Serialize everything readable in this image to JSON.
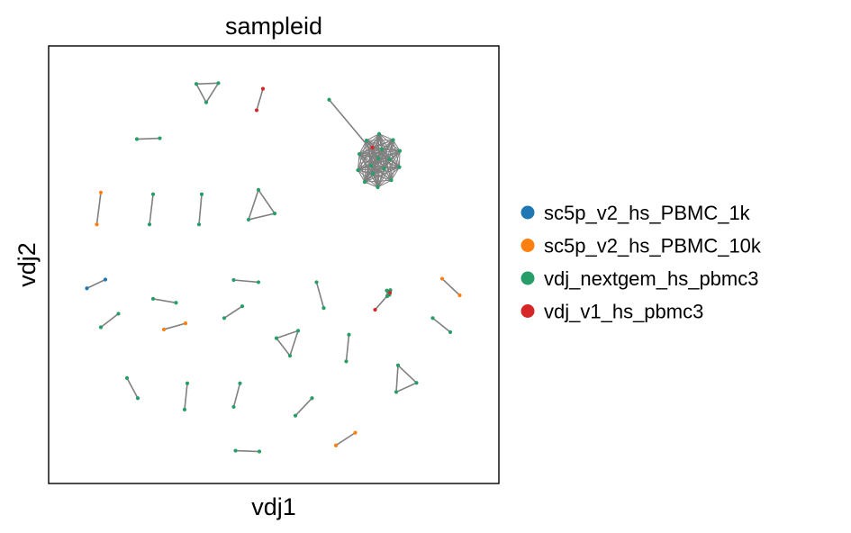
{
  "chart_data": {
    "type": "scatter",
    "title": "sampleid",
    "xlabel": "vdj1",
    "ylabel": "vdj2",
    "xlim": [
      0,
      100
    ],
    "ylim": [
      0,
      100
    ],
    "grid": false,
    "ticks": false,
    "legend_placement": "right",
    "edge_color": "#808080",
    "series": [
      {
        "name": "sc5p_v2_hs_PBMC_1k",
        "color": "#1f77b4"
      },
      {
        "name": "sc5p_v2_hs_PBMC_10k",
        "color": "#ff7f0e"
      },
      {
        "name": "vdj_nextgem_hs_pbmc3",
        "color": "#279e68"
      },
      {
        "name": "vdj_v1_hs_pbmc3",
        "color": "#d62728"
      }
    ],
    "nodes": [
      [
        32.8,
        91.3,
        2
      ],
      [
        37.7,
        91.5,
        2
      ],
      [
        35.0,
        87.1,
        2
      ],
      [
        47.6,
        90.2,
        3
      ],
      [
        46.2,
        85.3,
        3
      ],
      [
        19.6,
        78.7,
        2
      ],
      [
        24.7,
        78.9,
        2
      ],
      [
        62.3,
        87.7,
        2
      ],
      [
        11.6,
        66.5,
        1
      ],
      [
        10.7,
        59.2,
        1
      ],
      [
        23.2,
        66.1,
        2
      ],
      [
        22.4,
        59.2,
        2
      ],
      [
        34.0,
        66.1,
        2
      ],
      [
        33.4,
        59.2,
        2
      ],
      [
        46.6,
        67.1,
        2
      ],
      [
        44.4,
        60.3,
        2
      ],
      [
        50.2,
        61.7,
        2
      ],
      [
        8.5,
        44.6,
        0
      ],
      [
        12.6,
        46.6,
        0
      ],
      [
        23.2,
        42.2,
        2
      ],
      [
        28.3,
        41.3,
        2
      ],
      [
        41.1,
        46.5,
        2
      ],
      [
        46.6,
        46.0,
        2
      ],
      [
        59.5,
        46.0,
        2
      ],
      [
        61.1,
        40.1,
        2
      ],
      [
        75.6,
        43.5,
        3
      ],
      [
        75.3,
        43.0,
        3
      ],
      [
        75.8,
        44.0,
        3
      ],
      [
        75.6,
        43.5,
        2
      ],
      [
        75.2,
        42.8,
        2
      ],
      [
        75.9,
        44.2,
        2
      ],
      [
        75.4,
        43.8,
        2
      ],
      [
        75.7,
        43.1,
        2
      ],
      [
        75.1,
        44.1,
        2
      ],
      [
        72.5,
        39.7,
        3
      ],
      [
        75.8,
        43.6,
        3
      ],
      [
        87.4,
        46.8,
        1
      ],
      [
        91.3,
        43.0,
        1
      ],
      [
        11.6,
        35.7,
        2
      ],
      [
        15.5,
        38.8,
        2
      ],
      [
        25.6,
        35.2,
        1
      ],
      [
        30.4,
        36.6,
        1
      ],
      [
        39.0,
        37.8,
        2
      ],
      [
        43.0,
        40.5,
        2
      ],
      [
        50.6,
        33.2,
        2
      ],
      [
        55.4,
        34.9,
        2
      ],
      [
        53.6,
        29.2,
        2
      ],
      [
        66.7,
        34.0,
        2
      ],
      [
        66.1,
        27.9,
        2
      ],
      [
        85.3,
        37.8,
        2
      ],
      [
        89.2,
        34.6,
        2
      ],
      [
        17.4,
        24.1,
        2
      ],
      [
        19.8,
        19.5,
        2
      ],
      [
        30.8,
        22.9,
        2
      ],
      [
        30.2,
        16.9,
        2
      ],
      [
        42.5,
        22.9,
        2
      ],
      [
        41.1,
        17.5,
        2
      ],
      [
        58.5,
        19.5,
        2
      ],
      [
        54.8,
        15.5,
        2
      ],
      [
        77.6,
        27.0,
        2
      ],
      [
        81.7,
        23.0,
        2
      ],
      [
        77.2,
        20.9,
        2
      ],
      [
        68.1,
        11.6,
        1
      ],
      [
        63.8,
        8.7,
        1
      ],
      [
        41.5,
        7.5,
        2
      ],
      [
        46.8,
        7.3,
        2
      ]
    ],
    "edges": [
      [
        0,
        1
      ],
      [
        1,
        2
      ],
      [
        2,
        0
      ],
      [
        3,
        4
      ],
      [
        5,
        6
      ],
      [
        8,
        9
      ],
      [
        10,
        11
      ],
      [
        12,
        13
      ],
      [
        14,
        15
      ],
      [
        15,
        16
      ],
      [
        16,
        14
      ],
      [
        17,
        18
      ],
      [
        19,
        20
      ],
      [
        21,
        22
      ],
      [
        23,
        24
      ],
      [
        25,
        26
      ],
      [
        26,
        27
      ],
      [
        27,
        28
      ],
      [
        28,
        29
      ],
      [
        29,
        30
      ],
      [
        30,
        31
      ],
      [
        31,
        32
      ],
      [
        32,
        33
      ],
      [
        33,
        25
      ],
      [
        34,
        35
      ],
      [
        36,
        37
      ],
      [
        38,
        39
      ],
      [
        40,
        41
      ],
      [
        42,
        43
      ],
      [
        44,
        45
      ],
      [
        45,
        46
      ],
      [
        46,
        44
      ],
      [
        47,
        48
      ],
      [
        49,
        50
      ],
      [
        51,
        52
      ],
      [
        53,
        54
      ],
      [
        55,
        56
      ],
      [
        57,
        58
      ],
      [
        59,
        60
      ],
      [
        60,
        61
      ],
      [
        61,
        59
      ],
      [
        62,
        63
      ],
      [
        64,
        65
      ]
    ],
    "cluster": {
      "center": [
        73.2,
        74.3
      ],
      "anchor": [
        62.3,
        87.7
      ],
      "members": [
        [
          73.4,
          79.9,
          2
        ],
        [
          76.5,
          78.5,
          2
        ],
        [
          78.0,
          76.0,
          2
        ],
        [
          77.9,
          72.3,
          2
        ],
        [
          76.1,
          69.3,
          2
        ],
        [
          73.1,
          67.7,
          2
        ],
        [
          70.2,
          68.9,
          2
        ],
        [
          68.7,
          71.6,
          2
        ],
        [
          69.0,
          75.3,
          2
        ],
        [
          70.6,
          78.4,
          2
        ],
        [
          73.2,
          74.3,
          2
        ],
        [
          74.5,
          72.0,
          2
        ],
        [
          71.6,
          72.6,
          2
        ],
        [
          74.0,
          76.4,
          2
        ],
        [
          72.0,
          70.8,
          2
        ],
        [
          75.7,
          74.1,
          2
        ],
        [
          71.9,
          76.8,
          3
        ]
      ]
    }
  }
}
